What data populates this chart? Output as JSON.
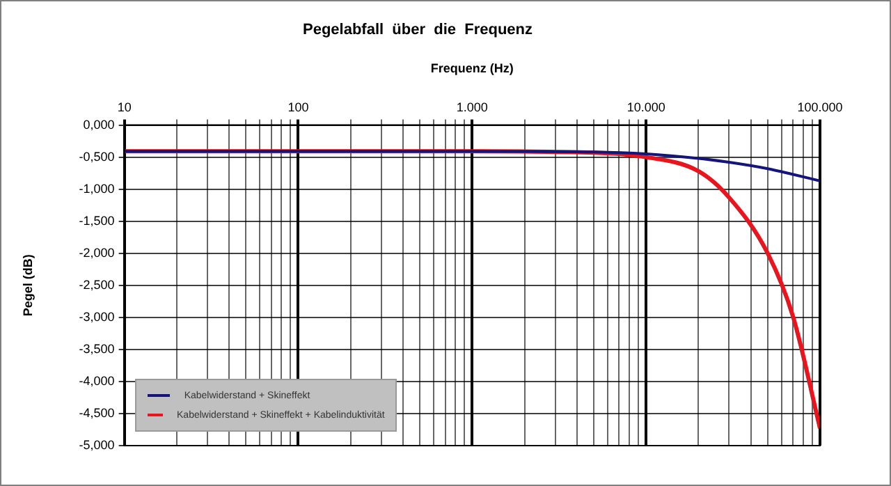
{
  "chart_data": {
    "type": "line",
    "title": "Pegelabfall  über  die  Frequenz",
    "xlabel": "Frequenz (Hz)",
    "ylabel": "Pegel (dB)",
    "log": "x",
    "xlim": [
      10,
      100000
    ],
    "xticks": [
      {
        "value": 10,
        "label": "10"
      },
      {
        "value": 20,
        "label": null
      },
      {
        "value": 30,
        "label": null
      },
      {
        "value": 40,
        "label": null
      },
      {
        "value": 50,
        "label": null
      },
      {
        "value": 60,
        "label": null
      },
      {
        "value": 70,
        "label": null
      },
      {
        "value": 80,
        "label": null
      },
      {
        "value": 90,
        "label": null
      },
      {
        "value": 100,
        "label": "100"
      },
      {
        "value": 200,
        "label": null
      },
      {
        "value": 300,
        "label": null
      },
      {
        "value": 400,
        "label": null
      },
      {
        "value": 500,
        "label": null
      },
      {
        "value": 600,
        "label": null
      },
      {
        "value": 700,
        "label": null
      },
      {
        "value": 800,
        "label": null
      },
      {
        "value": 900,
        "label": null
      },
      {
        "value": 1000,
        "label": "1.000"
      },
      {
        "value": 2000,
        "label": null
      },
      {
        "value": 3000,
        "label": null
      },
      {
        "value": 4000,
        "label": null
      },
      {
        "value": 5000,
        "label": null
      },
      {
        "value": 6000,
        "label": null
      },
      {
        "value": 7000,
        "label": null
      },
      {
        "value": 8000,
        "label": null
      },
      {
        "value": 9000,
        "label": null
      },
      {
        "value": 10000,
        "label": "10.000"
      },
      {
        "value": 20000,
        "label": null
      },
      {
        "value": 30000,
        "label": null
      },
      {
        "value": 40000,
        "label": null
      },
      {
        "value": 50000,
        "label": null
      },
      {
        "value": 60000,
        "label": null
      },
      {
        "value": 70000,
        "label": null
      },
      {
        "value": 80000,
        "label": null
      },
      {
        "value": 90000,
        "label": null
      },
      {
        "value": 100000,
        "label": "100.000"
      }
    ],
    "ylim": [
      -5,
      0
    ],
    "yticks": [
      {
        "value": 0,
        "label": "0,000"
      },
      {
        "value": -0.5,
        "label": "-0,500"
      },
      {
        "value": -1,
        "label": "-1,000"
      },
      {
        "value": -1.5,
        "label": "-1,500"
      },
      {
        "value": -2,
        "label": "-2,000"
      },
      {
        "value": -2.5,
        "label": "-2,500"
      },
      {
        "value": -3,
        "label": "-3,000"
      },
      {
        "value": -3.5,
        "label": "-3,500"
      },
      {
        "value": -4,
        "label": "-4,000"
      },
      {
        "value": -4.5,
        "label": "-4,500"
      },
      {
        "value": -5,
        "label": "-5,000"
      }
    ],
    "grid": true,
    "legend": "bottom left",
    "marker": "none",
    "line_style": "solid",
    "series": [
      {
        "name": "Kabelwiderstand + Skineffekt",
        "color": "#14147a",
        "x": [
          10,
          100,
          1000,
          5000,
          10000,
          20000,
          30000,
          50000,
          70000,
          100000
        ],
        "values": [
          -0.41,
          -0.41,
          -0.41,
          -0.42,
          -0.45,
          -0.52,
          -0.58,
          -0.68,
          -0.77,
          -0.87
        ]
      },
      {
        "name": "Kabelwiderstand + Skineffekt + Kabelinduktivität",
        "color": "#e8141e",
        "x": [
          10,
          100,
          1000,
          5000,
          10000,
          20000,
          30000,
          50000,
          70000,
          100000
        ],
        "values": [
          -0.41,
          -0.41,
          -0.41,
          -0.43,
          -0.5,
          -0.72,
          -1.13,
          -2.0,
          -2.99,
          -4.73
        ]
      }
    ]
  }
}
